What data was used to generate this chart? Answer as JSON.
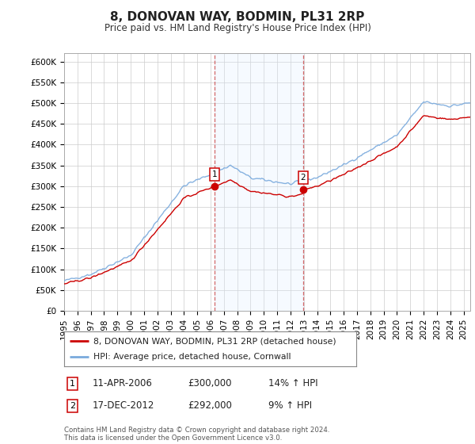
{
  "title": "8, DONOVAN WAY, BODMIN, PL31 2RP",
  "subtitle": "Price paid vs. HM Land Registry's House Price Index (HPI)",
  "ylim": [
    0,
    620000
  ],
  "yticks": [
    0,
    50000,
    100000,
    150000,
    200000,
    250000,
    300000,
    350000,
    400000,
    450000,
    500000,
    550000,
    600000
  ],
  "ytick_labels": [
    "£0",
    "£50K",
    "£100K",
    "£150K",
    "£200K",
    "£250K",
    "£300K",
    "£350K",
    "£400K",
    "£450K",
    "£500K",
    "£550K",
    "£600K"
  ],
  "sale1_price": 300000,
  "sale1_label": "11-APR-2006",
  "sale1_hpi_pct": "14% ↑ HPI",
  "sale1_year": 2006.292,
  "sale2_price": 292000,
  "sale2_label": "17-DEC-2012",
  "sale2_hpi_pct": "9% ↑ HPI",
  "sale2_year": 2012.958,
  "legend_line1": "8, DONOVAN WAY, BODMIN, PL31 2RP (detached house)",
  "legend_line2": "HPI: Average price, detached house, Cornwall",
  "footer": "Contains HM Land Registry data © Crown copyright and database right 2024.\nThis data is licensed under the Open Government Licence v3.0.",
  "line_color_property": "#cc0000",
  "line_color_hpi": "#7aaadd",
  "shade_color": "#ddeeff",
  "grid_color": "#cccccc",
  "background_color": "#ffffff",
  "xlim_start": 1995,
  "xlim_end": 2025.5
}
